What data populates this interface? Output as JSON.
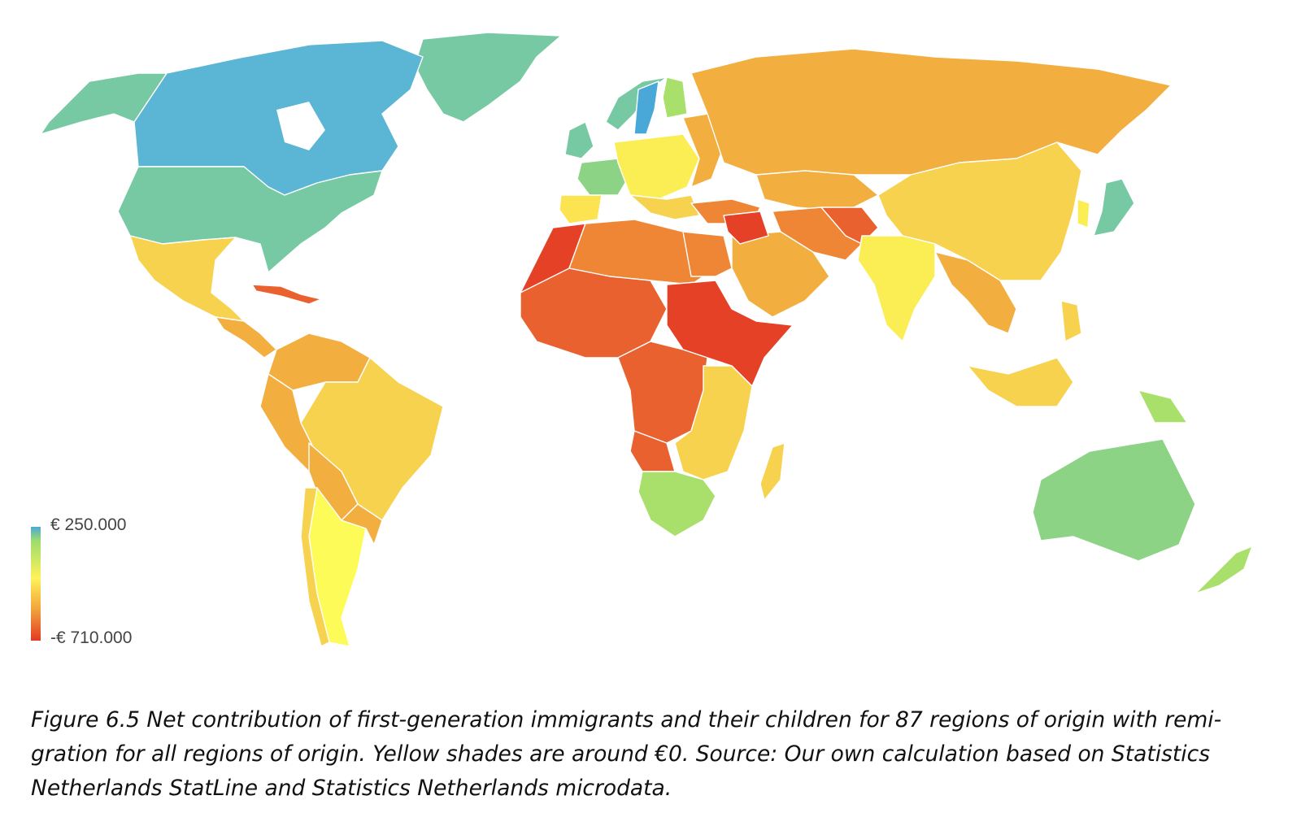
{
  "legend": {
    "max_label": "€ 250.000",
    "min_label": "-€ 710.000",
    "scale_colors": [
      "#4aa8d8",
      "#9cdc6e",
      "#fff25a",
      "#f2a53c",
      "#e23a24"
    ]
  },
  "caption": {
    "line1": "Figure 6.5 Net contribution of first-generation immigrants and their children for 87 regions of origin with remi-",
    "line2": "gration for all regions of origin. Yellow shades are around €0. Source: Our own calculation based on Statistics",
    "line3": "Netherlands StatLine and Statistics Netherlands microdata."
  },
  "colors": {
    "blue": "#5bb5d4",
    "teal": "#76c9a3",
    "green": "#8dd386",
    "light_green": "#a9e06c",
    "yellow": "#fbee55",
    "light_orange": "#f7d24e",
    "orange": "#f2ae3e",
    "dark_orange": "#ee8636",
    "red_orange": "#e9612e",
    "red": "#e44126"
  }
}
